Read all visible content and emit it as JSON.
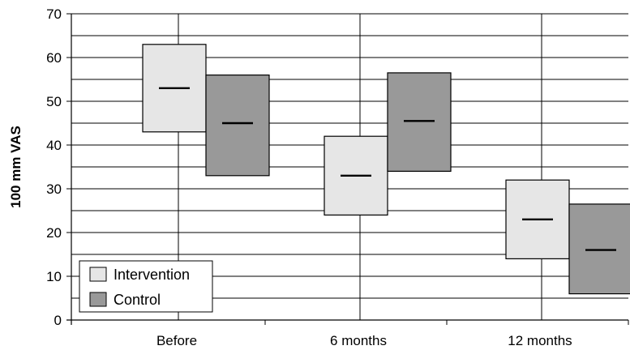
{
  "chart_data": {
    "type": "box",
    "title": "",
    "ylabel": "100 mm VAS",
    "xlabel": "",
    "ylim": [
      0,
      70
    ],
    "yticks": [
      0,
      10,
      20,
      30,
      40,
      50,
      60,
      70
    ],
    "categories": [
      "Before",
      "6 months",
      "12 months"
    ],
    "series": [
      {
        "name": "Intervention",
        "color": "#e6e6e6",
        "boxes": [
          {
            "low": 43,
            "median": 53,
            "high": 63
          },
          {
            "low": 24,
            "median": 33,
            "high": 42
          },
          {
            "low": 14,
            "median": 23,
            "high": 32
          }
        ]
      },
      {
        "name": "Control",
        "color": "#999999",
        "boxes": [
          {
            "low": 33,
            "median": 45,
            "high": 56
          },
          {
            "low": 34,
            "median": 45.5,
            "high": 56.5
          },
          {
            "low": 6,
            "median": 16,
            "high": 26.5
          }
        ]
      }
    ],
    "grid": true,
    "legend": "bottom-left"
  }
}
